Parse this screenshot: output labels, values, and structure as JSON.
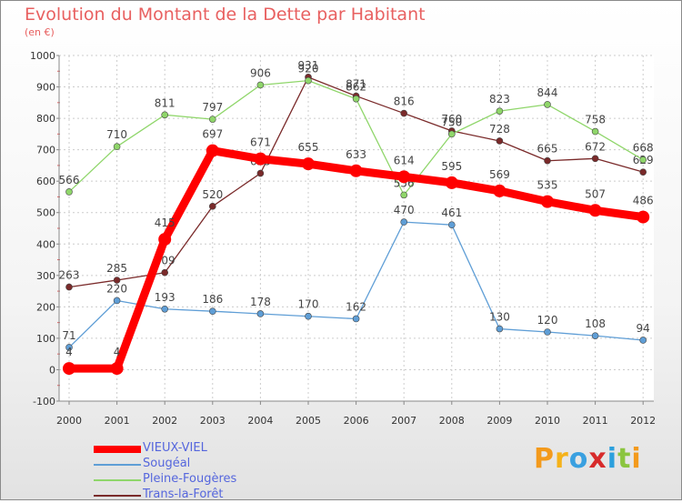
{
  "title": "Evolution du Montant de la Dette par Habitant",
  "subtitle": "(en €)",
  "brand": "Proxiti",
  "chart_data": {
    "type": "line",
    "x": [
      "2000",
      "2001",
      "2002",
      "2003",
      "2004",
      "2005",
      "2006",
      "2007",
      "2008",
      "2009",
      "2010",
      "2011",
      "2012"
    ],
    "ylim": [
      -100,
      1000
    ],
    "yticks": [
      -100,
      0,
      100,
      200,
      300,
      400,
      500,
      600,
      700,
      800,
      900,
      1000
    ],
    "grid": true,
    "legend_position": "bottom-left",
    "series": [
      {
        "name": "Trans-la-Forêt",
        "color": "#7a2a2a",
        "values": [
          263,
          285,
          309,
          520,
          625,
          931,
          871,
          816,
          760,
          728,
          665,
          672,
          629
        ]
      },
      {
        "name": "Pleine-Fougères",
        "color": "#8fd66a",
        "values": [
          566,
          710,
          811,
          797,
          906,
          920,
          862,
          556,
          750,
          823,
          844,
          758,
          668
        ]
      },
      {
        "name": "Sougéal",
        "color": "#5f9ed6",
        "values": [
          71,
          220,
          193,
          186,
          178,
          170,
          162,
          470,
          461,
          130,
          120,
          108,
          94
        ]
      },
      {
        "name": "VIEUX-VIEL",
        "color": "#ff0000",
        "values": [
          4,
          4,
          415,
          697,
          671,
          655,
          633,
          614,
          595,
          569,
          535,
          507,
          486
        ]
      }
    ],
    "data_labels": [
      [
        "263",
        "285",
        "309",
        "520",
        "625",
        "931",
        "871",
        "816",
        "760",
        "728",
        "665",
        "672",
        "629"
      ],
      [
        "566",
        "710",
        "811",
        "797",
        "906",
        "920",
        "862",
        "556",
        "750",
        "823",
        "844",
        "758",
        "668"
      ],
      [
        "71",
        "220",
        "193",
        "186",
        "178",
        "170",
        "162",
        "470",
        "461",
        "130",
        "120",
        "108",
        "94"
      ],
      [
        "4",
        "4",
        "415",
        "697",
        "671",
        "655",
        "633",
        "614",
        "595",
        "569",
        "535",
        "507",
        "486"
      ]
    ]
  }
}
